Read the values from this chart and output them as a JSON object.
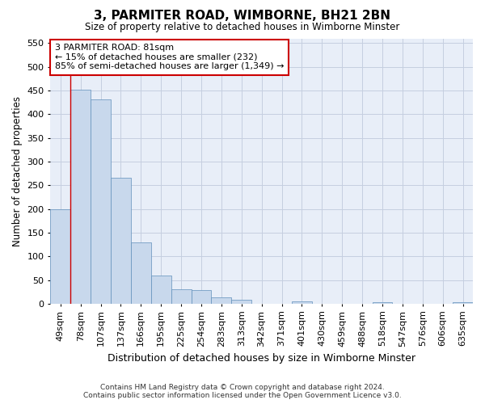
{
  "title": "3, PARMITER ROAD, WIMBORNE, BH21 2BN",
  "subtitle": "Size of property relative to detached houses in Wimborne Minster",
  "xlabel": "Distribution of detached houses by size in Wimborne Minster",
  "ylabel": "Number of detached properties",
  "footer_line1": "Contains HM Land Registry data © Crown copyright and database right 2024.",
  "footer_line2": "Contains public sector information licensed under the Open Government Licence v3.0.",
  "bar_labels": [
    "49sqm",
    "78sqm",
    "107sqm",
    "137sqm",
    "166sqm",
    "195sqm",
    "225sqm",
    "254sqm",
    "283sqm",
    "313sqm",
    "342sqm",
    "371sqm",
    "401sqm",
    "430sqm",
    "459sqm",
    "488sqm",
    "518sqm",
    "547sqm",
    "576sqm",
    "606sqm",
    "635sqm"
  ],
  "bar_values": [
    200,
    452,
    432,
    265,
    130,
    60,
    30,
    28,
    13,
    8,
    0,
    0,
    5,
    0,
    0,
    0,
    4,
    0,
    0,
    0,
    4
  ],
  "bar_color": "#c8d8ec",
  "bar_edge_color": "#6090bb",
  "grid_color": "#c5cfe0",
  "bg_color": "#ffffff",
  "plot_bg_color": "#e8eef8",
  "annotation_text_line1": "3 PARMITER ROAD: 81sqm",
  "annotation_text_line2": "← 15% of detached houses are smaller (232)",
  "annotation_text_line3": "85% of semi-detached houses are larger (1,349) →",
  "annotation_box_color": "#ffffff",
  "annotation_box_edge_color": "#cc0000",
  "vline_color": "#cc0000",
  "vline_x": 0.5,
  "ylim": [
    0,
    560
  ],
  "yticks": [
    0,
    50,
    100,
    150,
    200,
    250,
    300,
    350,
    400,
    450,
    500,
    550
  ]
}
